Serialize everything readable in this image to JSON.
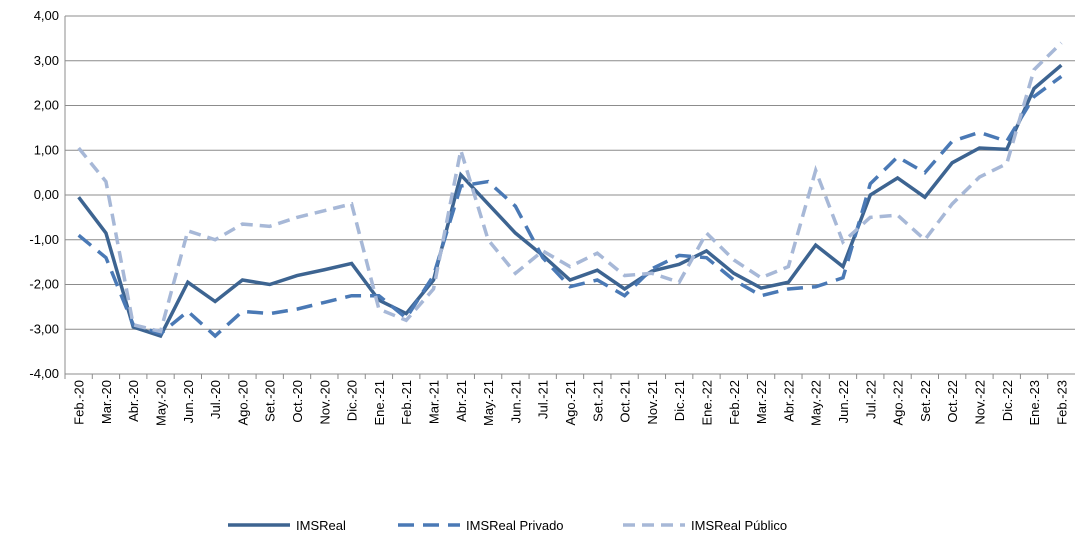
{
  "chart_data": {
    "type": "line",
    "categories": [
      "Feb.-20",
      "Mar.-20",
      "Abr.-20",
      "May.-20",
      "Jun.-20",
      "Jul.-20",
      "Ago.-20",
      "Set.-20",
      "Oct.-20",
      "Nov.-20",
      "Dic.-20",
      "Ene.-21",
      "Feb.-21",
      "Mar.-21",
      "Abr.-21",
      "May.-21",
      "Jun.-21",
      "Jul.-21",
      "Ago.-21",
      "Set.-21",
      "Oct.-21",
      "Nov.-21",
      "Dic.-21",
      "Ene.-22",
      "Feb.-22",
      "Mar.-22",
      "Abr.-22",
      "May.-22",
      "Jun.-22",
      "Jul.-22",
      "Ago.-22",
      "Set.-22",
      "Oct.-22",
      "Nov.-22",
      "Dic.-22",
      "Ene.-23",
      "Feb.-23"
    ],
    "series": [
      {
        "name": "IMSReal",
        "color": "#3d6491",
        "dash": "solid",
        "values": [
          -0.05,
          -0.85,
          -2.95,
          -3.15,
          -1.95,
          -2.38,
          -1.9,
          -2.0,
          -1.8,
          -1.67,
          -1.53,
          -2.35,
          -2.65,
          -1.9,
          0.45,
          -0.2,
          -0.85,
          -1.35,
          -1.9,
          -1.68,
          -2.1,
          -1.7,
          -1.55,
          -1.25,
          -1.75,
          -2.08,
          -1.95,
          -1.12,
          -1.6,
          0.0,
          0.38,
          -0.05,
          0.72,
          1.05,
          1.02,
          2.38,
          2.9
        ]
      },
      {
        "name": "IMSReal Privado",
        "color": "#4a79b5",
        "dash": "long",
        "values": [
          -0.9,
          -1.4,
          -2.9,
          -3.1,
          -2.6,
          -3.15,
          -2.6,
          -2.65,
          -2.55,
          -2.4,
          -2.25,
          -2.25,
          -2.75,
          -1.8,
          0.2,
          0.3,
          -0.25,
          -1.4,
          -2.05,
          -1.9,
          -2.25,
          -1.65,
          -1.35,
          -1.4,
          -1.9,
          -2.25,
          -2.1,
          -2.05,
          -1.85,
          0.25,
          0.85,
          0.5,
          1.2,
          1.4,
          1.2,
          2.2,
          2.65
        ]
      },
      {
        "name": "IMSReal Público",
        "color": "#a7b8d7",
        "dash": "short",
        "values": [
          1.05,
          0.3,
          -2.9,
          -3.05,
          -0.8,
          -1.0,
          -0.65,
          -0.7,
          -0.5,
          -0.35,
          -0.2,
          -2.55,
          -2.8,
          -2.1,
          1.0,
          -1.0,
          -1.75,
          -1.25,
          -1.6,
          -1.3,
          -1.8,
          -1.75,
          -1.95,
          -0.85,
          -1.45,
          -1.85,
          -1.6,
          0.55,
          -1.05,
          -0.5,
          -0.45,
          -1.0,
          -0.2,
          0.4,
          0.7,
          2.8,
          3.4
        ]
      }
    ],
    "ylim": [
      -4,
      4
    ],
    "yticks": [
      {
        "value": -4,
        "label": "-4,00"
      },
      {
        "value": -3,
        "label": "-3,00"
      },
      {
        "value": -2,
        "label": "-2,00"
      },
      {
        "value": -1,
        "label": "-1,00"
      },
      {
        "value": 0,
        "label": "0,00"
      },
      {
        "value": 1,
        "label": "1,00"
      },
      {
        "value": 2,
        "label": "2,00"
      },
      {
        "value": 3,
        "label": "3,00"
      },
      {
        "value": 4,
        "label": "4,00"
      }
    ],
    "grid": true,
    "legend": "bottom"
  }
}
